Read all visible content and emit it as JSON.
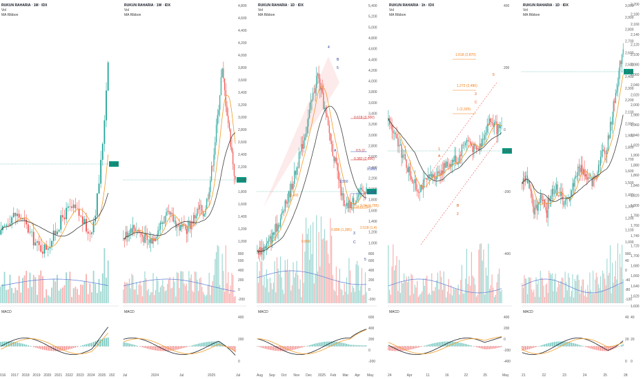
{
  "colors": {
    "up": "#26a69a",
    "down": "#ef5350",
    "ma_fast": "#f29a22",
    "ma_slow": "#3c3c3c",
    "volma": "#5b7bd6",
    "macd": "#131722",
    "signal": "#f29a22",
    "fib": "#f57f17",
    "fib2": "#d32f2f",
    "fib3": "#3f51b5",
    "price_tag": "#089981",
    "wave": "#283593",
    "wave_alt": "#e65100"
  },
  "panels": [
    {
      "title": "RUKUN RAHARIA · 1M · IDX",
      "vol_label": "Vol",
      "ribbon_label": "MA Ribbon",
      "macd_label": "MACD",
      "price_ticks": [],
      "price_tag": "2,100",
      "x_ticks": [
        "016",
        "2017",
        "2018",
        "2019",
        "2020",
        "2021",
        "2022",
        "2023",
        "2024",
        "2025",
        "202"
      ],
      "vol_ticks": [],
      "macd_ticks": []
    },
    {
      "title": "RUKUN RAHARIA · 1W · IDX",
      "vol_label": "Vol",
      "ribbon_label": "MA Ribbon",
      "macd_label": "MACD",
      "price_ticks": [
        "4,800",
        "4,600",
        "4,400",
        "4,200",
        "4,000",
        "3,800",
        "3,600",
        "3,400",
        "3,200",
        "3,000",
        "2,800",
        "2,600",
        "2,400",
        "2,200",
        "2,000",
        "1,800",
        "1,600",
        "1,400",
        "1,200",
        "1,000",
        "800"
      ],
      "price_tag": "2,100",
      "x_ticks": [
        "Jul",
        "2024",
        "Jul",
        "2025",
        "Jul"
      ],
      "vol_ticks": [
        "600",
        "400",
        "200",
        "0",
        "-200"
      ],
      "macd_ticks": [
        "400",
        "200",
        "0"
      ]
    },
    {
      "title": "RUKUN RAHARIA · 1D · IDX",
      "vol_label": "Vol",
      "ribbon_label": "MA Ribbon",
      "macd_label": "MACD",
      "price_ticks": [
        "5,400",
        "5,200",
        "5,000",
        "4,800",
        "4,600",
        "4,400",
        "4,200",
        "4,000",
        "3,800",
        "3,600",
        "3,400",
        "3,200",
        "3,000",
        "2,800",
        "2,600",
        "2,400",
        "2,200",
        "2,000",
        "1,800",
        "1,600",
        "1,400",
        "1,200",
        "1,000",
        "800"
      ],
      "price_tag": "2,100",
      "x_ticks": [
        "Aug",
        "Sep",
        "Oct",
        "Nov",
        "Dec",
        "2025",
        "Feb",
        "Mar",
        "Apr",
        "May"
      ],
      "vol_ticks": [
        "600",
        "400",
        "200",
        "0",
        "-200"
      ],
      "macd_ticks": [
        "600",
        "400",
        "200",
        "0",
        "-200"
      ]
    },
    {
      "title": "RUKUN RAHARIA · 1h · IDX",
      "vol_label": "Vol",
      "ribbon_label": "MA Ribbon",
      "macd_label": "MACD",
      "price_ticks": [
        "400",
        "200",
        "0",
        "-200",
        "-400"
      ],
      "price_tag": "2,100",
      "x_ticks": [
        "24",
        "Apr",
        "11",
        "16",
        "22",
        "25",
        "May"
      ],
      "vol_ticks": [],
      "macd_ticks": [
        "400",
        "200",
        "0",
        "-200",
        "-400"
      ]
    },
    {
      "title": "RUKUN RAHARIA · 1D · IDX",
      "vol_label": "Vol",
      "ribbon_label": "MA Ribbon",
      "macd_label": "MACD",
      "price_ticks": [
        "3,000",
        "2,900",
        "2,800",
        "2,700",
        "2,600",
        "2,500",
        "2,400",
        "2,300",
        "2,200",
        "2,100",
        "2,000",
        "1,900",
        "1,800",
        "1,700",
        "1,600",
        "1,500",
        "1,400",
        "1,300",
        "1,200",
        "1,100",
        "1,000",
        "900"
      ],
      "price_tag": "2,100",
      "x_ticks": [
        "21",
        "22",
        "23",
        "24",
        "25",
        "28"
      ],
      "vol_ticks": [
        "40",
        "0",
        "-40",
        "-80",
        "-120"
      ],
      "macd_ticks": [
        "40",
        "20",
        "0"
      ]
    },
    {
      "title": "",
      "vol_label": "",
      "ribbon_label": "",
      "macd_label": "",
      "price_ticks": [
        "2,200",
        "2,180",
        "2,160",
        "2,140",
        "2,120",
        "2,100",
        "2,080",
        "2,060",
        "2,040",
        "2,020",
        "2,000",
        "1,980",
        "1,960",
        "1,940",
        "1,920",
        "1,900",
        "1,880",
        "1,860",
        "1,840",
        "1,820",
        "1,800",
        "1,780",
        "1,760",
        "1,740",
        "1,720",
        "1,700",
        "1,680",
        "1,660",
        "1,640",
        "1,620",
        "1,600"
      ],
      "price_tag": "2,100",
      "x_ticks": [],
      "vol_ticks": [],
      "macd_ticks": [
        "40",
        "20",
        "0"
      ]
    }
  ],
  "annotations": {
    "daily_fibs": [
      "0.618 (3,300)",
      "0.5 (2,",
      "0.382 (2,600)",
      "0.382)",
      "2,550",
      "0.236",
      "1.618 (1,750)",
      "2.24 (1,795)",
      "2.618 (1,4)",
      "0.886 (1,395)",
      "0.869",
      "0.402"
    ],
    "daily_waves": [
      "4",
      "B",
      "5",
      "A",
      "C",
      "3",
      "5"
    ],
    "hourly_fibs": [
      "1.618 (2,870)",
      "1.272 (2,480)",
      "1 (2,335)"
    ],
    "hourly_waves": [
      "5",
      "3",
      "C",
      "4",
      "1",
      "A",
      "B",
      "2"
    ]
  },
  "chart_data": [
    {
      "type": "line",
      "title": "RUKUN RAHARIA · 1M · IDX",
      "x": [
        "016",
        "2017",
        "2018",
        "2019",
        "2020",
        "2021",
        "2022",
        "2023",
        "2024",
        "2025"
      ],
      "series": [
        {
          "values": [
            1050,
            900,
            1500,
            1250,
            850,
            1100,
            1200,
            1650,
            2900,
            2100
          ]
        }
      ],
      "ylim": [
        600,
        4600
      ]
    },
    {
      "type": "line",
      "title": "RUKUN RAHARIA · 1W · IDX",
      "x": [
        "Jul",
        "2024",
        "Jul",
        "2025",
        "Jul"
      ],
      "series": [
        {
          "values": [
            900,
            1250,
            1000,
            3600,
            2100
          ]
        }
      ],
      "ylim": [
        700,
        4800
      ]
    },
    {
      "type": "line",
      "title": "RUKUN RAHARIA · 1D · IDX",
      "x": [
        "Aug",
        "Sep",
        "Oct",
        "Nov",
        "Dec",
        "2025",
        "Feb",
        "Mar",
        "Apr"
      ],
      "series": [
        {
          "values": [
            1000,
            1100,
            1200,
            1750,
            2350,
            4300,
            3200,
            1800,
            2100
          ]
        }
      ],
      "ylim": [
        700,
        5400
      ]
    },
    {
      "type": "line",
      "title": "RUKUN RAHARIA · 1h · IDX",
      "x": [
        "24",
        "Apr",
        "11",
        "16",
        "22",
        "25"
      ],
      "series": [
        {
          "values": [
            2200,
            1800,
            1550,
            1950,
            2000,
            2100
          ]
        }
      ],
      "ylim": [
        1300,
        3000
      ]
    },
    {
      "type": "line",
      "title": "RUKUN RAHARIA · 1D · IDX",
      "x": [
        "21",
        "22",
        "23",
        "24",
        "25",
        "28"
      ],
      "series": [
        {
          "values": [
            1850,
            1800,
            1920,
            1890,
            1960,
            2100
          ]
        }
      ],
      "ylim": [
        1600,
        2200
      ]
    }
  ]
}
